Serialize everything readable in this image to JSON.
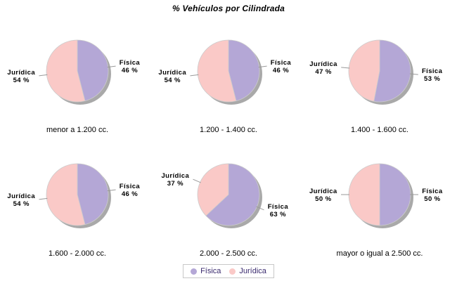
{
  "page": {
    "title": "% Vehículos por Cilindrada"
  },
  "legend": {
    "position": "bottom-center",
    "items": [
      {
        "label": "Física",
        "color": "#b4a7d6"
      },
      {
        "label": "Jurídica",
        "color": "#fac9c7"
      }
    ]
  },
  "chart_data": [
    {
      "type": "pie",
      "title": "menor a 1.200 cc.",
      "series": [
        {
          "name": "Física",
          "value": 46
        },
        {
          "name": "Jurídica",
          "value": 54
        }
      ]
    },
    {
      "type": "pie",
      "title": "1.200 - 1.400 cc.",
      "series": [
        {
          "name": "Física",
          "value": 46
        },
        {
          "name": "Jurídica",
          "value": 54
        }
      ]
    },
    {
      "type": "pie",
      "title": "1.400 - 1.600 cc.",
      "series": [
        {
          "name": "Física",
          "value": 53
        },
        {
          "name": "Jurídica",
          "value": 47
        }
      ]
    },
    {
      "type": "pie",
      "title": "1.600 - 2.000 cc.",
      "series": [
        {
          "name": "Física",
          "value": 46
        },
        {
          "name": "Jurídica",
          "value": 54
        }
      ]
    },
    {
      "type": "pie",
      "title": "2.000 - 2.500 cc.",
      "series": [
        {
          "name": "Física",
          "value": 63
        },
        {
          "name": "Jurídica",
          "value": 37
        }
      ]
    },
    {
      "type": "pie",
      "title": "mayor o igual a 2.500 cc.",
      "series": [
        {
          "name": "Física",
          "value": 50
        },
        {
          "name": "Jurídica",
          "value": 50
        }
      ]
    }
  ],
  "pie_style": {
    "start_angle": "top",
    "direction": "clockwise",
    "percent_suffix": " %",
    "shadow_color": "#9a9a9a",
    "leader_line_color": "#999999",
    "slice_outline_color": "#cccccc",
    "label_color": "#000000",
    "legend_text_color": "#3a2a6e"
  }
}
